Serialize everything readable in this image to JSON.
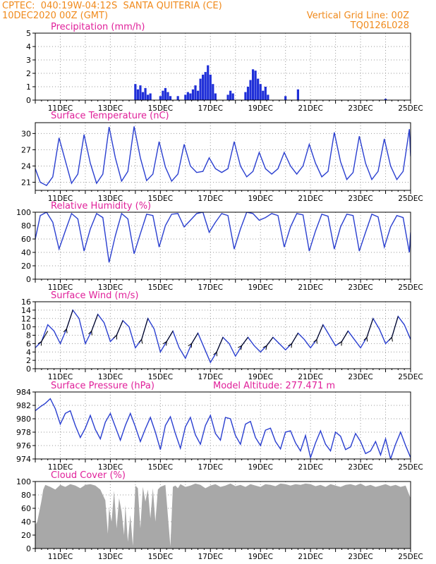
{
  "header": {
    "line1_left": "CPTEC:  040:19W-04:12S  SANTA QUITERIA (CE)",
    "line2_left": "10DEC2020 00Z (GMT)",
    "line1_right": "Vertical Grid Line: 00Z",
    "line2_right": "TQ0126L028"
  },
  "colors": {
    "header": "#f08a1c",
    "title": "#e0209a",
    "line": "#2a3fd0",
    "bar": "#1f2fd8",
    "cloud": "#a8a8a8",
    "wind_arrow": "#000000"
  },
  "chart_data": [
    {
      "id": "precip",
      "type": "bar",
      "title": "Precipitation (mm/h)",
      "x_tick_labels": [
        "11DEC",
        "13DEC",
        "15DEC",
        "17DEC",
        "19DEC",
        "21DEC",
        "23DEC",
        "25DEC"
      ],
      "ylim": [
        0,
        5
      ],
      "yticks": [
        0,
        1,
        2,
        3,
        4,
        5
      ],
      "values": [
        [
          1.3,
          0.1
        ],
        [
          14.0,
          1.2
        ],
        [
          14.1,
          0.8
        ],
        [
          14.2,
          1.1
        ],
        [
          14.3,
          0.6
        ],
        [
          14.4,
          0.9
        ],
        [
          14.5,
          0.4
        ],
        [
          14.6,
          0.5
        ],
        [
          15.0,
          0.3
        ],
        [
          15.1,
          0.7
        ],
        [
          15.2,
          0.9
        ],
        [
          15.3,
          0.6
        ],
        [
          15.4,
          0.3
        ],
        [
          15.7,
          0.3
        ],
        [
          16.0,
          0.4
        ],
        [
          16.1,
          0.6
        ],
        [
          16.2,
          0.5
        ],
        [
          16.3,
          0.8
        ],
        [
          16.4,
          1.1
        ],
        [
          16.5,
          0.7
        ],
        [
          16.6,
          1.6
        ],
        [
          16.7,
          1.9
        ],
        [
          16.8,
          2.1
        ],
        [
          16.9,
          2.6
        ],
        [
          17.0,
          1.9
        ],
        [
          17.1,
          1.2
        ],
        [
          17.2,
          0.5
        ],
        [
          17.7,
          0.4
        ],
        [
          17.8,
          0.7
        ],
        [
          17.9,
          0.5
        ],
        [
          18.4,
          0.6
        ],
        [
          18.5,
          1.0
        ],
        [
          18.6,
          1.5
        ],
        [
          18.7,
          2.3
        ],
        [
          18.8,
          2.2
        ],
        [
          18.9,
          1.6
        ],
        [
          19.0,
          1.2
        ],
        [
          19.1,
          0.7
        ],
        [
          19.2,
          1.0
        ],
        [
          19.3,
          0.4
        ],
        [
          20.0,
          0.3
        ],
        [
          20.5,
          0.8
        ],
        [
          24.0,
          0.1
        ]
      ]
    },
    {
      "id": "temp",
      "type": "line",
      "title": "Surface Temperature (nC)",
      "x_tick_labels": [
        "11DEC",
        "13DEC",
        "15DEC",
        "17DEC",
        "19DEC",
        "21DEC",
        "23DEC",
        "25DEC"
      ],
      "ylim": [
        19.5,
        32
      ],
      "yticks": [
        21,
        24,
        27,
        30
      ],
      "x": [
        10.0,
        10.2,
        10.45,
        10.7,
        10.95,
        11.2,
        11.45,
        11.7,
        11.95,
        12.2,
        12.45,
        12.7,
        12.95,
        13.2,
        13.45,
        13.7,
        13.95,
        14.2,
        14.45,
        14.7,
        14.95,
        15.2,
        15.45,
        15.7,
        15.95,
        16.2,
        16.45,
        16.7,
        16.95,
        17.2,
        17.45,
        17.7,
        17.95,
        18.2,
        18.45,
        18.7,
        18.95,
        19.2,
        19.45,
        19.7,
        19.95,
        20.2,
        20.45,
        20.7,
        20.95,
        21.2,
        21.45,
        21.7,
        21.95,
        22.2,
        22.45,
        22.7,
        22.95,
        23.2,
        23.45,
        23.7,
        23.95,
        24.2,
        24.45,
        24.7,
        24.95,
        25.0
      ],
      "values": [
        23.5,
        21.0,
        20.4,
        22.0,
        29.2,
        25.0,
        20.8,
        22.5,
        29.8,
        24.5,
        20.8,
        22.5,
        31.2,
        25.5,
        21.2,
        23.0,
        31.3,
        25.5,
        21.3,
        22.5,
        28.5,
        23.8,
        21.2,
        22.5,
        28.0,
        24.0,
        22.8,
        23.0,
        25.5,
        23.5,
        22.8,
        23.5,
        28.5,
        24.0,
        22.0,
        23.0,
        26.5,
        23.5,
        22.5,
        23.5,
        26.5,
        24.0,
        22.5,
        24.0,
        28.0,
        24.5,
        22.0,
        23.0,
        30.2,
        24.8,
        21.5,
        22.8,
        29.5,
        24.5,
        21.5,
        23.0,
        29.0,
        24.0,
        21.5,
        23.0,
        30.8,
        25.8
      ]
    },
    {
      "id": "rh",
      "type": "line",
      "title": "Relative Humidity (%)",
      "x_tick_labels": [
        "11DEC",
        "13DEC",
        "15DEC",
        "17DEC",
        "19DEC",
        "21DEC",
        "23DEC",
        "25DEC"
      ],
      "ylim": [
        0,
        100
      ],
      "yticks": [
        0,
        20,
        40,
        60,
        80,
        100
      ],
      "x": [
        10.0,
        10.2,
        10.45,
        10.7,
        10.95,
        11.2,
        11.45,
        11.7,
        11.95,
        12.2,
        12.45,
        12.7,
        12.95,
        13.2,
        13.45,
        13.7,
        13.95,
        14.2,
        14.45,
        14.7,
        14.95,
        15.2,
        15.45,
        15.7,
        15.95,
        16.2,
        16.45,
        16.7,
        16.95,
        17.2,
        17.45,
        17.7,
        17.95,
        18.2,
        18.45,
        18.7,
        18.95,
        19.2,
        19.45,
        19.7,
        19.95,
        20.2,
        20.45,
        20.7,
        20.95,
        21.2,
        21.45,
        21.7,
        21.95,
        22.2,
        22.45,
        22.7,
        22.95,
        23.2,
        23.45,
        23.7,
        23.95,
        24.2,
        24.45,
        24.7,
        24.95,
        25.0
      ],
      "values": [
        60,
        95,
        100,
        85,
        45,
        72,
        98,
        90,
        42,
        75,
        98,
        92,
        25,
        65,
        98,
        90,
        38,
        68,
        97,
        95,
        48,
        80,
        97,
        98,
        78,
        88,
        98,
        100,
        70,
        85,
        98,
        95,
        45,
        75,
        100,
        98,
        88,
        92,
        98,
        95,
        48,
        78,
        98,
        96,
        42,
        72,
        97,
        94,
        45,
        78,
        97,
        95,
        42,
        70,
        97,
        93,
        48,
        78,
        95,
        92,
        40,
        70
      ]
    },
    {
      "id": "wind",
      "type": "line",
      "title": "Surface Wind (m/s)",
      "x_tick_labels": [
        "11DEC",
        "13DEC",
        "15DEC",
        "17DEC",
        "19DEC",
        "21DEC",
        "23DEC",
        "25DEC"
      ],
      "ylim": [
        0,
        16
      ],
      "yticks": [
        0,
        2,
        4,
        6,
        8,
        10,
        12,
        14,
        16
      ],
      "x": [
        10.0,
        10.25,
        10.5,
        10.75,
        11.0,
        11.25,
        11.5,
        11.75,
        12.0,
        12.25,
        12.5,
        12.75,
        13.0,
        13.25,
        13.5,
        13.75,
        14.0,
        14.25,
        14.5,
        14.75,
        15.0,
        15.25,
        15.5,
        15.75,
        16.0,
        16.25,
        16.5,
        16.75,
        17.0,
        17.25,
        17.5,
        17.75,
        18.0,
        18.25,
        18.5,
        18.75,
        19.0,
        19.25,
        19.5,
        19.75,
        20.0,
        20.25,
        20.5,
        20.75,
        21.0,
        21.25,
        21.5,
        21.75,
        22.0,
        22.25,
        22.5,
        22.75,
        23.0,
        23.25,
        23.5,
        23.75,
        24.0,
        24.25,
        24.5,
        24.75,
        25.0
      ],
      "values": [
        5.0,
        6.5,
        10.5,
        9.0,
        6.0,
        9.5,
        14.0,
        12.0,
        6.0,
        9.0,
        13.0,
        11.0,
        6.5,
        8.0,
        11.5,
        10.0,
        5.0,
        7.0,
        12.0,
        9.5,
        4.0,
        6.5,
        9.0,
        5.0,
        2.5,
        6.0,
        8.5,
        5.0,
        1.5,
        4.0,
        7.5,
        6.0,
        3.0,
        5.5,
        7.5,
        5.5,
        4.0,
        5.5,
        7.5,
        6.0,
        4.5,
        6.0,
        8.5,
        7.0,
        5.0,
        7.0,
        10.5,
        8.0,
        5.5,
        6.5,
        9.0,
        7.0,
        5.0,
        7.5,
        12.0,
        9.5,
        6.0,
        7.5,
        12.5,
        10.5,
        7.0
      ],
      "arrows": [
        [
          10.25,
          6.5,
          10.5,
          9.0
        ],
        [
          11.25,
          9.5,
          11.5,
          14.0
        ],
        [
          12.25,
          9.0,
          12.5,
          13.0
        ],
        [
          13.25,
          8.0,
          13.5,
          11.5
        ],
        [
          14.25,
          7.0,
          14.5,
          12.0
        ],
        [
          15.25,
          6.5,
          15.5,
          9.0
        ],
        [
          16.25,
          6.0,
          16.5,
          8.5
        ],
        [
          17.25,
          4.0,
          17.5,
          7.5
        ],
        [
          18.25,
          5.5,
          18.5,
          7.5
        ],
        [
          19.25,
          5.5,
          19.5,
          7.5
        ],
        [
          20.25,
          6.0,
          20.5,
          8.5
        ],
        [
          21.25,
          7.0,
          21.5,
          10.5
        ],
        [
          22.25,
          6.5,
          22.5,
          9.0
        ],
        [
          23.25,
          7.5,
          23.5,
          12.0
        ],
        [
          24.25,
          7.5,
          24.5,
          12.5
        ]
      ]
    },
    {
      "id": "pressure",
      "type": "line",
      "title": "Surface Pressure (hPa)",
      "annotation": "Model Altitude: 277.471  m",
      "x_tick_labels": [
        "11DEC",
        "13DEC",
        "15DEC",
        "17DEC",
        "19DEC",
        "21DEC",
        "23DEC",
        "25DEC"
      ],
      "ylim": [
        974,
        984
      ],
      "yticks": [
        974,
        976,
        978,
        980,
        982,
        984
      ],
      "x": [
        10.0,
        10.2,
        10.4,
        10.6,
        10.8,
        11.0,
        11.2,
        11.4,
        11.6,
        11.8,
        12.0,
        12.2,
        12.4,
        12.6,
        12.8,
        13.0,
        13.2,
        13.4,
        13.6,
        13.8,
        14.0,
        14.2,
        14.4,
        14.6,
        14.8,
        15.0,
        15.2,
        15.4,
        15.6,
        15.8,
        16.0,
        16.2,
        16.4,
        16.6,
        16.8,
        17.0,
        17.2,
        17.4,
        17.6,
        17.8,
        18.0,
        18.2,
        18.4,
        18.6,
        18.8,
        19.0,
        19.2,
        19.4,
        19.6,
        19.8,
        20.0,
        20.2,
        20.4,
        20.6,
        20.8,
        21.0,
        21.2,
        21.4,
        21.6,
        21.8,
        22.0,
        22.2,
        22.4,
        22.6,
        22.8,
        23.0,
        23.2,
        23.4,
        23.6,
        23.8,
        24.0,
        24.2,
        24.4,
        24.6,
        24.8,
        25.0
      ],
      "values": [
        981.2,
        981.8,
        982.3,
        983.0,
        981.5,
        979.2,
        980.8,
        981.2,
        979.0,
        977.2,
        978.6,
        980.5,
        978.4,
        977.0,
        979.5,
        980.8,
        978.8,
        976.8,
        979.0,
        980.8,
        978.8,
        976.6,
        978.5,
        980.2,
        978.0,
        975.4,
        979.0,
        980.3,
        977.8,
        975.6,
        978.8,
        980.2,
        977.6,
        976.2,
        979.0,
        980.5,
        977.8,
        976.8,
        980.2,
        980.0,
        977.5,
        976.2,
        979.2,
        979.6,
        977.2,
        976.0,
        978.3,
        978.6,
        976.6,
        975.5,
        978.0,
        978.2,
        976.4,
        975.2,
        977.5,
        974.2,
        976.4,
        978.2,
        976.2,
        975.2,
        978.0,
        977.4,
        975.4,
        975.8,
        977.8,
        976.6,
        974.8,
        975.2,
        976.6,
        974.6,
        977.0,
        974.0,
        976.2,
        978.0,
        976.0,
        974.2
      ]
    },
    {
      "id": "cloud",
      "type": "area",
      "title": "Cloud Cover (%)",
      "x_tick_labels": [
        "11DEC",
        "13DEC",
        "15DEC",
        "17DEC",
        "19DEC",
        "21DEC",
        "23DEC",
        "25DEC"
      ],
      "ylim": [
        0,
        100
      ],
      "yticks": [
        0,
        20,
        40,
        60,
        80,
        100
      ],
      "x": [
        10.0,
        10.08,
        10.16,
        10.24,
        10.32,
        10.4,
        10.6,
        10.8,
        11.0,
        11.2,
        11.4,
        11.6,
        11.8,
        12.0,
        12.2,
        12.4,
        12.6,
        12.8,
        12.9,
        12.95,
        13.05,
        13.15,
        13.25,
        13.35,
        13.45,
        13.55,
        13.6,
        13.7,
        13.8,
        13.9,
        14.0,
        14.1,
        14.2,
        14.3,
        14.4,
        14.5,
        14.6,
        14.7,
        14.8,
        14.9,
        15.0,
        15.2,
        15.4,
        15.5,
        15.6,
        15.7,
        15.8,
        16.0,
        16.2,
        16.4,
        16.6,
        16.8,
        17.0,
        17.2,
        17.4,
        17.6,
        17.8,
        18.0,
        18.2,
        18.4,
        18.6,
        18.8,
        19.0,
        19.2,
        19.4,
        19.6,
        19.8,
        20.0,
        20.2,
        20.4,
        20.6,
        20.8,
        21.0,
        21.2,
        21.4,
        21.6,
        21.8,
        22.0,
        22.2,
        22.4,
        22.6,
        22.8,
        23.0,
        23.2,
        23.4,
        23.6,
        23.8,
        24.0,
        24.2,
        24.4,
        24.6,
        24.8,
        25.0
      ],
      "values": [
        35,
        40,
        55,
        70,
        88,
        95,
        92,
        88,
        95,
        92,
        96,
        94,
        90,
        95,
        96,
        94,
        88,
        72,
        22,
        60,
        40,
        86,
        30,
        75,
        55,
        20,
        65,
        10,
        50,
        4,
        94,
        90,
        30,
        92,
        70,
        88,
        45,
        90,
        40,
        88,
        92,
        95,
        3,
        92,
        94,
        90,
        96,
        92,
        94,
        97,
        95,
        90,
        94,
        96,
        92,
        94,
        97,
        93,
        95,
        92,
        96,
        94,
        92,
        96,
        95,
        93,
        97,
        96,
        94,
        96,
        95,
        97,
        96,
        93,
        95,
        92,
        96,
        94,
        92,
        95,
        96,
        94,
        97,
        93,
        95,
        92,
        94,
        96,
        93,
        95,
        92,
        94,
        75
      ]
    }
  ]
}
